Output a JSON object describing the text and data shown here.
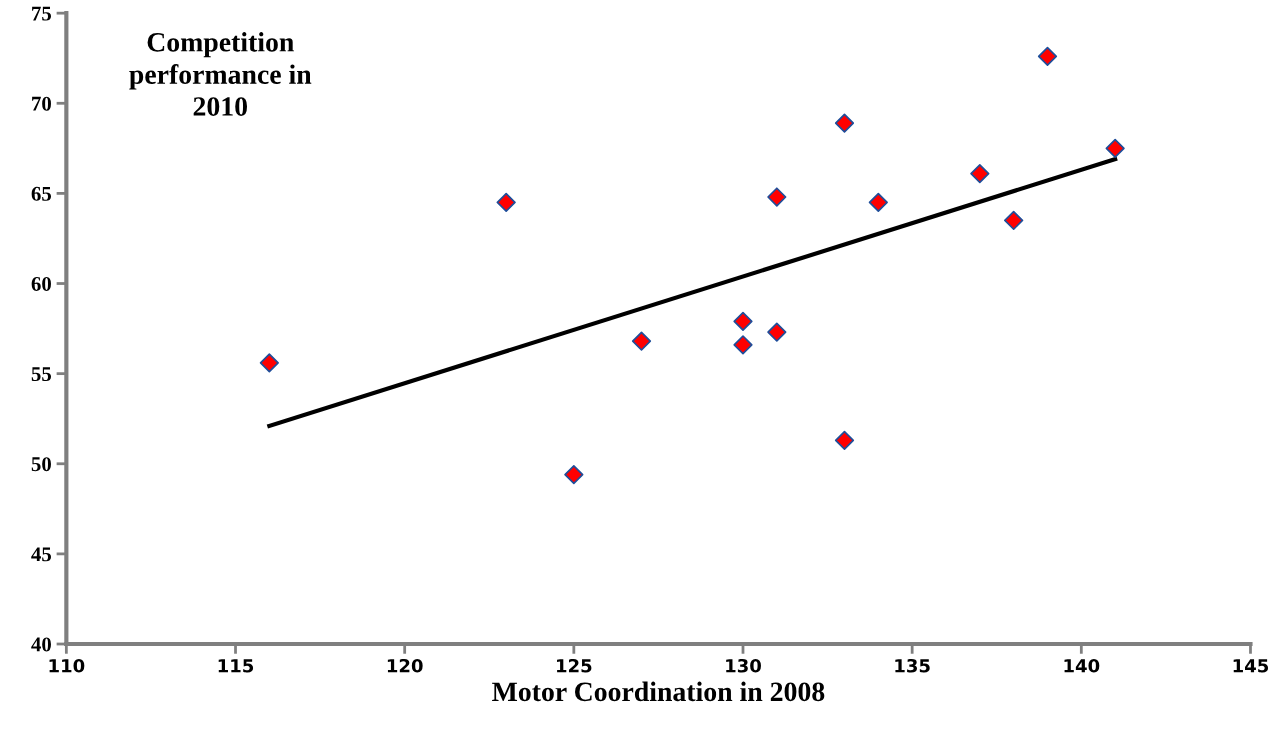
{
  "chart_data": {
    "type": "scatter",
    "xlabel": "Motor Coordination in 2008",
    "ylabel": "Competition performance in 2010",
    "xlim": [
      110,
      145
    ],
    "xticks": [
      110,
      115,
      120,
      125,
      130,
      135,
      140,
      145
    ],
    "ylim": [
      40,
      75
    ],
    "yticks": [
      40,
      45,
      50,
      55,
      60,
      65,
      70,
      75
    ],
    "grid": false,
    "legend": false,
    "series": [
      {
        "marker": "diamond",
        "color": "#ff0000",
        "x": [
          116,
          123,
          125,
          127,
          130,
          130,
          131,
          131,
          133,
          133,
          134,
          137,
          138,
          139,
          141
        ],
        "values": [
          55.6,
          64.5,
          49.4,
          56.8,
          57.9,
          56.6,
          64.8,
          57.3,
          68.9,
          51.3,
          64.5,
          66.1,
          63.5,
          72.6,
          67.5
        ]
      },
      {
        "type": "line",
        "marker": "none",
        "color": "#000000",
        "x": [
          116,
          141
        ],
        "values": [
          52.1,
          66.9
        ]
      }
    ]
  }
}
